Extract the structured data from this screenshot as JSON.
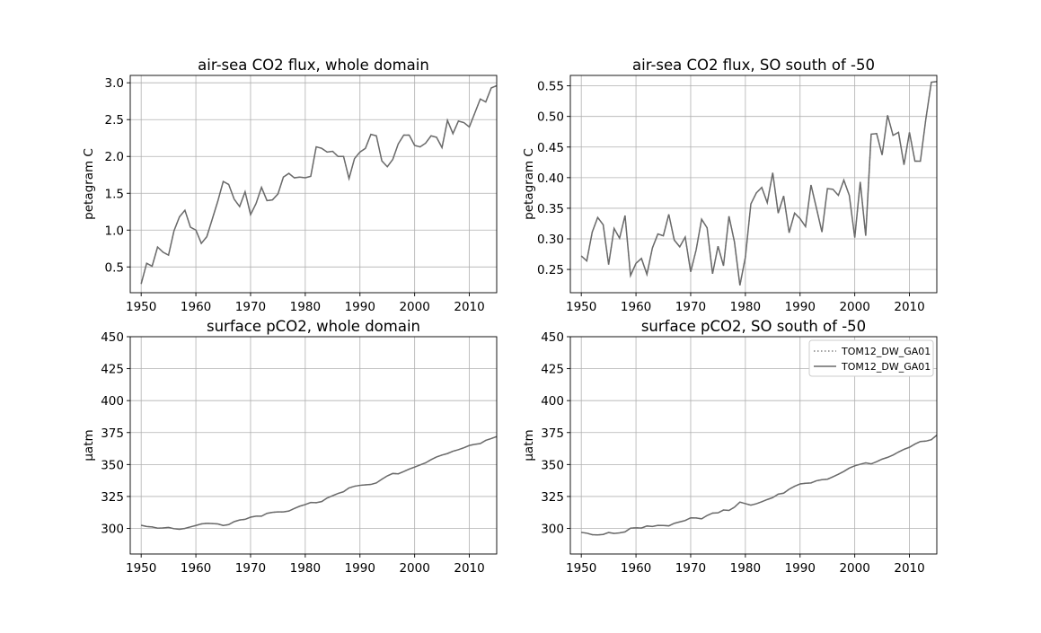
{
  "chart_data": [
    {
      "type": "line",
      "title": "air-sea CO2 flux, whole domain",
      "xlabel": "",
      "ylabel": "petagram C",
      "xlim": [
        1948,
        2015
      ],
      "ylim": [
        0.15,
        3.1
      ],
      "xticks": [
        1950,
        1960,
        1970,
        1980,
        1990,
        2000,
        2010
      ],
      "yticks": [
        0.5,
        1.0,
        1.5,
        2.0,
        2.5,
        3.0
      ],
      "ytick_labels": [
        "0.5",
        "1.0",
        "1.5",
        "2.0",
        "2.5",
        "3.0"
      ],
      "grid": true,
      "x": [
        1950,
        1951,
        1952,
        1953,
        1954,
        1955,
        1956,
        1957,
        1958,
        1959,
        1960,
        1961,
        1962,
        1963,
        1964,
        1965,
        1966,
        1967,
        1968,
        1969,
        1970,
        1971,
        1972,
        1973,
        1974,
        1975,
        1976,
        1977,
        1978,
        1979,
        1980,
        1981,
        1982,
        1983,
        1984,
        1985,
        1986,
        1987,
        1988,
        1989,
        1990,
        1991,
        1992,
        1993,
        1994,
        1995,
        1996,
        1997,
        1998,
        1999,
        2000,
        2001,
        2002,
        2003,
        2004,
        2005,
        2006,
        2007,
        2008,
        2009,
        2010,
        2011,
        2012,
        2013,
        2014,
        2015
      ],
      "series": [
        {
          "values": [
            0.27,
            0.55,
            0.51,
            0.77,
            0.7,
            0.66,
            0.99,
            1.18,
            1.27,
            1.04,
            1.0,
            0.82,
            0.91,
            1.15,
            1.39,
            1.66,
            1.62,
            1.42,
            1.32,
            1.52,
            1.21,
            1.36,
            1.58,
            1.4,
            1.41,
            1.49,
            1.72,
            1.77,
            1.71,
            1.72,
            1.71,
            1.73,
            2.13,
            2.11,
            2.06,
            2.07,
            2.0,
            2.0,
            1.7,
            1.97,
            2.06,
            2.11,
            2.3,
            2.28,
            1.94,
            1.86,
            1.96,
            2.17,
            2.29,
            2.29,
            2.15,
            2.13,
            2.18,
            2.28,
            2.26,
            2.12,
            2.49,
            2.31,
            2.48,
            2.46,
            2.4,
            2.59,
            2.78,
            2.74,
            2.93,
            2.96
          ],
          "style": "dotted",
          "color": "#7f7f7f"
        },
        {
          "values": [
            0.27,
            0.55,
            0.51,
            0.77,
            0.7,
            0.66,
            0.99,
            1.18,
            1.27,
            1.04,
            1.0,
            0.82,
            0.91,
            1.15,
            1.39,
            1.66,
            1.62,
            1.42,
            1.32,
            1.52,
            1.21,
            1.36,
            1.58,
            1.4,
            1.41,
            1.49,
            1.72,
            1.77,
            1.71,
            1.72,
            1.71,
            1.73,
            2.13,
            2.11,
            2.06,
            2.07,
            2.0,
            2.0,
            1.7,
            1.97,
            2.06,
            2.11,
            2.3,
            2.28,
            1.94,
            1.86,
            1.96,
            2.17,
            2.29,
            2.29,
            2.15,
            2.13,
            2.18,
            2.28,
            2.26,
            2.12,
            2.49,
            2.31,
            2.48,
            2.46,
            2.4,
            2.59,
            2.78,
            2.74,
            2.93,
            2.96
          ],
          "style": "solid",
          "color": "#6a6a6a"
        }
      ]
    },
    {
      "type": "line",
      "title": "air-sea CO2 flux, SO south of -50",
      "xlabel": "",
      "ylabel": "petagram C",
      "xlim": [
        1948,
        2015
      ],
      "ylim": [
        0.212,
        0.567
      ],
      "xticks": [
        1950,
        1960,
        1970,
        1980,
        1990,
        2000,
        2010
      ],
      "yticks": [
        0.25,
        0.3,
        0.35,
        0.4,
        0.45,
        0.5,
        0.55
      ],
      "ytick_labels": [
        "0.25",
        "0.30",
        "0.35",
        "0.40",
        "0.45",
        "0.50",
        "0.55"
      ],
      "grid": true,
      "x": [
        1950,
        1951,
        1952,
        1953,
        1954,
        1955,
        1956,
        1957,
        1958,
        1959,
        1960,
        1961,
        1962,
        1963,
        1964,
        1965,
        1966,
        1967,
        1968,
        1969,
        1970,
        1971,
        1972,
        1973,
        1974,
        1975,
        1976,
        1977,
        1978,
        1979,
        1980,
        1981,
        1982,
        1983,
        1984,
        1985,
        1986,
        1987,
        1988,
        1989,
        1990,
        1991,
        1992,
        1993,
        1994,
        1995,
        1996,
        1997,
        1998,
        1999,
        2000,
        2001,
        2002,
        2003,
        2004,
        2005,
        2006,
        2007,
        2008,
        2009,
        2010,
        2011,
        2012,
        2013,
        2014,
        2015
      ],
      "series": [
        {
          "values": [
            0.272,
            0.264,
            0.311,
            0.335,
            0.323,
            0.258,
            0.317,
            0.301,
            0.338,
            0.24,
            0.26,
            0.268,
            0.242,
            0.285,
            0.308,
            0.305,
            0.34,
            0.298,
            0.287,
            0.303,
            0.246,
            0.282,
            0.332,
            0.318,
            0.243,
            0.288,
            0.256,
            0.337,
            0.295,
            0.224,
            0.27,
            0.357,
            0.375,
            0.384,
            0.359,
            0.408,
            0.342,
            0.37,
            0.31,
            0.342,
            0.333,
            0.32,
            0.388,
            0.35,
            0.311,
            0.382,
            0.381,
            0.371,
            0.396,
            0.371,
            0.302,
            0.393,
            0.305,
            0.471,
            0.472,
            0.437,
            0.502,
            0.469,
            0.474,
            0.421,
            0.474,
            0.427,
            0.427,
            0.496,
            0.556,
            0.557
          ],
          "style": "dotted",
          "color": "#7f7f7f"
        },
        {
          "values": [
            0.272,
            0.264,
            0.311,
            0.335,
            0.323,
            0.258,
            0.317,
            0.301,
            0.338,
            0.24,
            0.26,
            0.268,
            0.242,
            0.285,
            0.308,
            0.305,
            0.34,
            0.298,
            0.287,
            0.303,
            0.246,
            0.282,
            0.332,
            0.318,
            0.243,
            0.288,
            0.256,
            0.337,
            0.295,
            0.224,
            0.27,
            0.357,
            0.375,
            0.384,
            0.359,
            0.408,
            0.342,
            0.37,
            0.31,
            0.342,
            0.333,
            0.32,
            0.388,
            0.35,
            0.311,
            0.382,
            0.381,
            0.371,
            0.396,
            0.371,
            0.302,
            0.393,
            0.305,
            0.471,
            0.472,
            0.437,
            0.502,
            0.469,
            0.474,
            0.421,
            0.474,
            0.427,
            0.427,
            0.496,
            0.556,
            0.557
          ],
          "style": "solid",
          "color": "#6a6a6a"
        }
      ]
    },
    {
      "type": "line",
      "title": "surface pCO2, whole domain",
      "xlabel": "",
      "ylabel": "μatm",
      "xlim": [
        1948,
        2015
      ],
      "ylim": [
        280,
        450
      ],
      "xticks": [
        1950,
        1960,
        1970,
        1980,
        1990,
        2000,
        2010
      ],
      "yticks": [
        300,
        325,
        350,
        375,
        400,
        425,
        450
      ],
      "ytick_labels": [
        "300",
        "325",
        "350",
        "375",
        "400",
        "425",
        "450"
      ],
      "grid": true,
      "x": [
        1950,
        1951,
        1952,
        1953,
        1954,
        1955,
        1956,
        1957,
        1958,
        1959,
        1960,
        1961,
        1962,
        1963,
        1964,
        1965,
        1966,
        1967,
        1968,
        1969,
        1970,
        1971,
        1972,
        1973,
        1974,
        1975,
        1976,
        1977,
        1978,
        1979,
        1980,
        1981,
        1982,
        1983,
        1984,
        1985,
        1986,
        1987,
        1988,
        1989,
        1990,
        1991,
        1992,
        1993,
        1994,
        1995,
        1996,
        1997,
        1998,
        1999,
        2000,
        2001,
        2002,
        2003,
        2004,
        2005,
        2006,
        2007,
        2008,
        2009,
        2010,
        2011,
        2012,
        2013,
        2014,
        2015
      ],
      "series": [
        {
          "values": [
            302.5,
            301.5,
            301.2,
            300.2,
            300.4,
            300.8,
            299.8,
            299.3,
            300.0,
            301.2,
            302.3,
            303.5,
            304.0,
            303.8,
            303.5,
            302.3,
            303.0,
            305.3,
            306.6,
            307.1,
            308.8,
            309.6,
            309.6,
            311.8,
            312.6,
            312.9,
            312.9,
            313.6,
            315.6,
            317.4,
            318.7,
            320.3,
            320.1,
            321.0,
            323.8,
            325.6,
            327.4,
            328.7,
            331.7,
            333.0,
            333.7,
            334.1,
            334.4,
            335.6,
            338.5,
            341.1,
            343.0,
            342.7,
            344.5,
            346.4,
            348.0,
            349.7,
            351.3,
            353.8,
            355.9,
            357.4,
            358.6,
            360.4,
            361.6,
            363.1,
            364.9,
            365.8,
            366.4,
            368.9,
            370.3,
            371.9
          ],
          "style": "dotted",
          "color": "#7f7f7f"
        },
        {
          "values": [
            302.5,
            301.5,
            301.2,
            300.2,
            300.4,
            300.8,
            299.8,
            299.3,
            300.0,
            301.2,
            302.3,
            303.5,
            304.0,
            303.8,
            303.5,
            302.3,
            303.0,
            305.3,
            306.6,
            307.1,
            308.8,
            309.6,
            309.6,
            311.8,
            312.6,
            312.9,
            312.9,
            313.6,
            315.6,
            317.4,
            318.7,
            320.3,
            320.1,
            321.0,
            323.8,
            325.6,
            327.4,
            328.7,
            331.7,
            333.0,
            333.7,
            334.1,
            334.4,
            335.6,
            338.5,
            341.1,
            343.0,
            342.7,
            344.5,
            346.4,
            348.0,
            349.7,
            351.3,
            353.8,
            355.9,
            357.4,
            358.6,
            360.4,
            361.6,
            363.1,
            364.9,
            365.8,
            366.4,
            368.9,
            370.3,
            371.9
          ],
          "style": "solid",
          "color": "#6a6a6a"
        }
      ]
    },
    {
      "type": "line",
      "title": "surface pCO2, SO south of -50",
      "xlabel": "",
      "ylabel": "μatm",
      "xlim": [
        1948,
        2015
      ],
      "ylim": [
        280,
        450
      ],
      "xticks": [
        1950,
        1960,
        1970,
        1980,
        1990,
        2000,
        2010
      ],
      "yticks": [
        300,
        325,
        350,
        375,
        400,
        425,
        450
      ],
      "ytick_labels": [
        "300",
        "325",
        "350",
        "375",
        "400",
        "425",
        "450"
      ],
      "grid": true,
      "legend": {
        "position": "upper-right",
        "entries": [
          {
            "label": "TOM12_DW_GA01",
            "style": "dotted"
          },
          {
            "label": "TOM12_DW_GA01",
            "style": "solid"
          }
        ]
      },
      "x": [
        1950,
        1951,
        1952,
        1953,
        1954,
        1955,
        1956,
        1957,
        1958,
        1959,
        1960,
        1961,
        1962,
        1963,
        1964,
        1965,
        1966,
        1967,
        1968,
        1969,
        1970,
        1971,
        1972,
        1973,
        1974,
        1975,
        1976,
        1977,
        1978,
        1979,
        1980,
        1981,
        1982,
        1983,
        1984,
        1985,
        1986,
        1987,
        1988,
        1989,
        1990,
        1991,
        1992,
        1993,
        1994,
        1995,
        1996,
        1997,
        1998,
        1999,
        2000,
        2001,
        2002,
        2003,
        2004,
        2005,
        2006,
        2007,
        2008,
        2009,
        2010,
        2011,
        2012,
        2013,
        2014,
        2015
      ],
      "series": [
        {
          "name": "TOM12_DW_GA01",
          "values": [
            296.9,
            296.3,
            295.1,
            294.9,
            295.3,
            296.8,
            296.1,
            296.5,
            297.3,
            300.2,
            300.5,
            300.3,
            301.9,
            301.5,
            302.4,
            302.3,
            302.0,
            304.0,
            305.1,
            306.2,
            308.3,
            308.2,
            307.5,
            310.1,
            312.0,
            312.2,
            314.4,
            314.1,
            316.6,
            320.6,
            319.4,
            318.2,
            319.3,
            320.9,
            322.6,
            324.1,
            326.8,
            327.6,
            330.7,
            333.0,
            334.8,
            335.3,
            335.6,
            337.3,
            338.1,
            338.5,
            340.4,
            342.4,
            344.6,
            347.2,
            349.0,
            350.2,
            351.3,
            350.5,
            352.2,
            354.2,
            355.6,
            357.4,
            359.8,
            361.9,
            363.5,
            366.0,
            368.0,
            368.3,
            369.4,
            373.0
          ],
          "style": "dotted",
          "color": "#7f7f7f"
        },
        {
          "name": "TOM12_DW_GA01",
          "values": [
            296.9,
            296.3,
            295.1,
            294.9,
            295.3,
            296.8,
            296.1,
            296.5,
            297.3,
            300.2,
            300.5,
            300.3,
            301.9,
            301.5,
            302.4,
            302.3,
            302.0,
            304.0,
            305.1,
            306.2,
            308.3,
            308.2,
            307.5,
            310.1,
            312.0,
            312.2,
            314.4,
            314.1,
            316.6,
            320.6,
            319.4,
            318.2,
            319.3,
            320.9,
            322.6,
            324.1,
            326.8,
            327.6,
            330.7,
            333.0,
            334.8,
            335.3,
            335.6,
            337.3,
            338.1,
            338.5,
            340.4,
            342.4,
            344.6,
            347.2,
            349.0,
            350.2,
            351.3,
            350.5,
            352.2,
            354.2,
            355.6,
            357.4,
            359.8,
            361.9,
            363.5,
            366.0,
            368.0,
            368.3,
            369.4,
            373.0
          ],
          "style": "solid",
          "color": "#6a6a6a"
        }
      ]
    }
  ],
  "colors": {
    "grid": "#b0b0b0",
    "axes": "#000000",
    "line": "#6a6a6a",
    "legend_border": "#cccccc"
  }
}
